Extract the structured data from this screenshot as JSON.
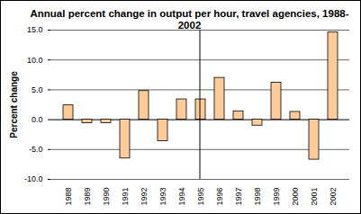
{
  "chart_data": {
    "type": "bar",
    "title": "Annual percent change in output per hour, travel agencies,  1988-2002",
    "y_label": "Percent change",
    "categories": [
      "1988",
      "1989",
      "1990",
      "1991",
      "1992",
      "1993",
      "1994",
      "1995",
      "1996",
      "1997",
      "1998",
      "1999",
      "2000",
      "2001",
      "2002"
    ],
    "values": [
      2.4,
      -0.6,
      -0.6,
      -6.5,
      4.8,
      -3.6,
      3.4,
      3.4,
      7.0,
      1.4,
      -1.0,
      6.2,
      1.3,
      -6.7,
      14.6
    ],
    "color": "#ffcc99",
    "ylim": [
      -10,
      15
    ],
    "yticks": [
      {
        "value": -10,
        "label": "-10.0"
      },
      {
        "value": -5,
        "label": "-5.0"
      },
      {
        "value": 0,
        "label": "0.0"
      },
      {
        "value": 5,
        "label": "5.0"
      },
      {
        "value": 10,
        "label": "10.0"
      },
      {
        "value": 15,
        "label": "15.0"
      }
    ],
    "grid": true
  }
}
